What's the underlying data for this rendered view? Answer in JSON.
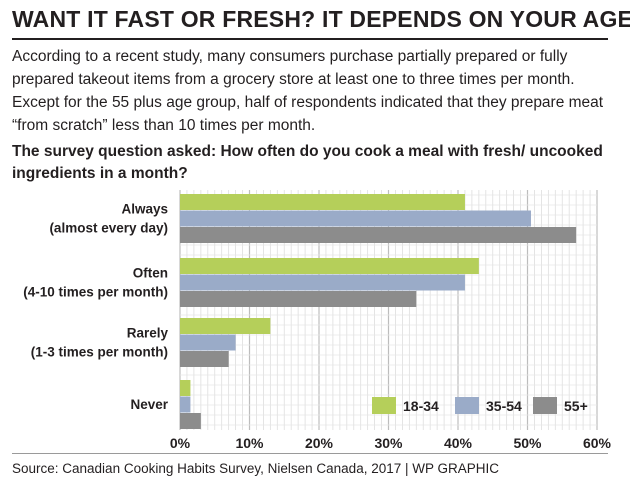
{
  "header": {
    "title": "WANT IT FAST OR FRESH? IT DEPENDS ON YOUR AGE",
    "intro": "According to a recent study, many consumers purchase partially prepared or fully prepared takeout items from a grocery store at least one to three times per month. Except for the 55 plus age group, half of respondents indicated that they prepare meat “from scratch” less than 10 times per month.",
    "question": "The survey question asked: How often do you cook a meal with fresh/ uncooked ingredients in a month?"
  },
  "footer": {
    "source": "Source: Canadian Cooking Habits Survey, Nielsen Canada, 2017 | WP GRAPHIC"
  },
  "chart_data": {
    "type": "bar",
    "orientation": "horizontal",
    "categories": [
      [
        "Always",
        "(almost every day)"
      ],
      [
        "Often",
        "(4-10 times per month)"
      ],
      [
        "Rarely",
        "(1-3 times per month)"
      ],
      [
        "Never"
      ]
    ],
    "series": [
      {
        "name": "18-34",
        "color": "#b5cf5a",
        "values": [
          41,
          43,
          13,
          1.5
        ]
      },
      {
        "name": "35-54",
        "color": "#9aabc8",
        "values": [
          50.5,
          41,
          8,
          1.5
        ]
      },
      {
        "name": "55+",
        "color": "#8c8c8c",
        "values": [
          57,
          34,
          7,
          3
        ]
      }
    ],
    "xlim": [
      0,
      60
    ],
    "xticks": [
      0,
      10,
      20,
      30,
      40,
      50,
      60
    ],
    "xtick_labels": [
      "0%",
      "10%",
      "20%",
      "30%",
      "40%",
      "50%",
      "60%"
    ],
    "grid": true,
    "legend_position": "bottom-right"
  }
}
